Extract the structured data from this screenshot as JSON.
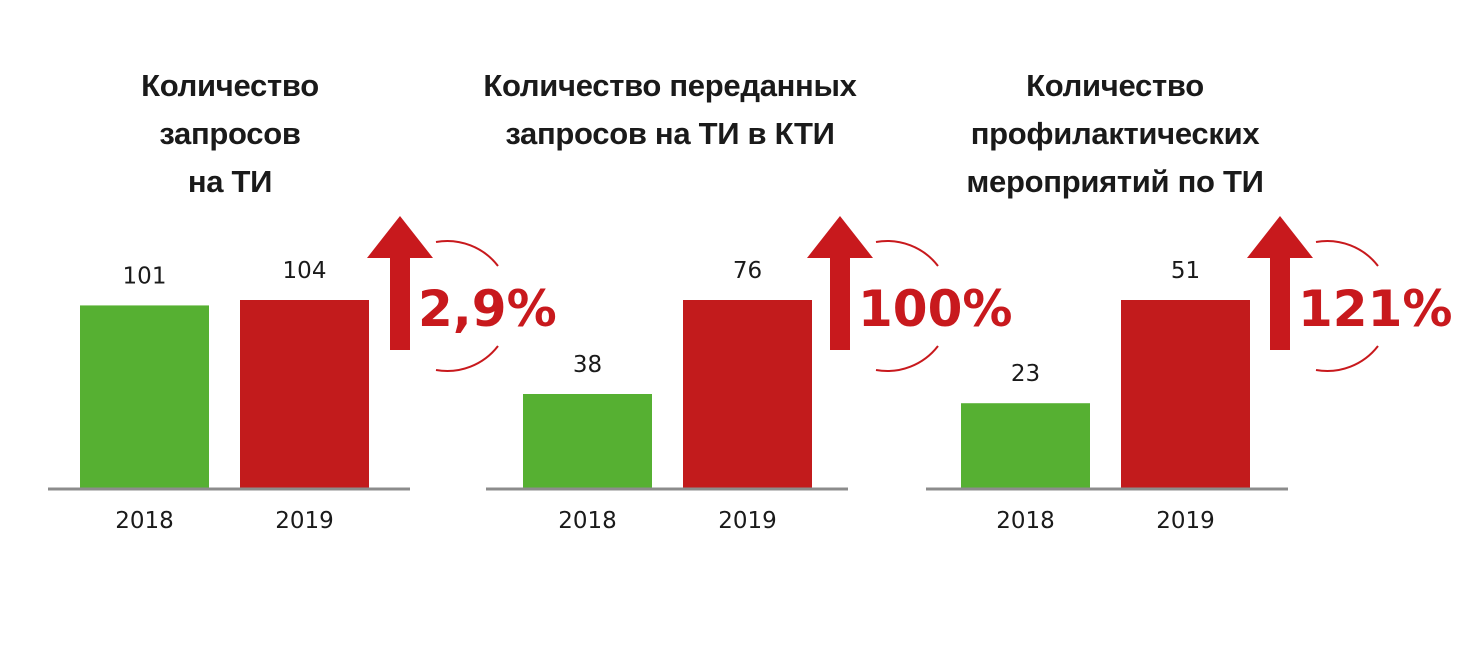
{
  "colors": {
    "prev_year": "#56b032",
    "curr_year": "#c21b1c",
    "axis": "#8c8c8c",
    "growth": "#c8191d"
  },
  "chart_data": [
    {
      "type": "bar",
      "title": "Количество\nзапросов\nна ТИ",
      "categories": [
        "2018",
        "2019"
      ],
      "values": [
        101,
        104
      ],
      "value_labels": [
        "101",
        "104"
      ],
      "growth_label": "2,9%",
      "growth_icon": "arrow-up-icon"
    },
    {
      "type": "bar",
      "title": "Количество переданных\nзапросов на ТИ в КТИ",
      "categories": [
        "2018",
        "2019"
      ],
      "values": [
        38,
        76
      ],
      "value_labels": [
        "38",
        "76"
      ],
      "growth_label": "100%",
      "growth_icon": "arrow-up-icon"
    },
    {
      "type": "bar",
      "title": "Количество\nпрофилактических\nмероприятий по ТИ",
      "categories": [
        "2018",
        "2019"
      ],
      "values": [
        23,
        51
      ],
      "value_labels": [
        "23",
        "51"
      ],
      "growth_label": "121%",
      "growth_icon": "arrow-up-icon"
    }
  ]
}
